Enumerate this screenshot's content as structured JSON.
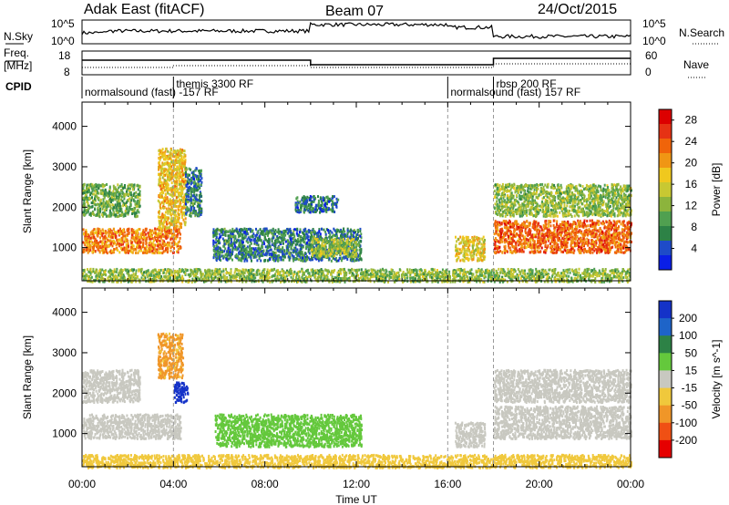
{
  "header": {
    "station": "Adak East (fitACF)",
    "beam": "Beam 07",
    "date": "24/Oct/2015"
  },
  "top_panels": {
    "nsky_label": "N.Sky",
    "nsearch_label": "N.Search",
    "nsky_ticks": [
      "10^5",
      "10^0"
    ],
    "nsearch_ticks": [
      "10^5",
      "10^0"
    ],
    "freq_label_1": "Freq.",
    "freq_label_2": "[MHz]",
    "freq_ticks": [
      "18",
      "8"
    ],
    "nave_label": "Nave",
    "nave_ticks": [
      "60",
      "0"
    ],
    "cpid_label": "CPID",
    "cpid_segments": [
      {
        "name": "normalsound (fast) -157 RF",
        "start": 0,
        "end": 4
      },
      {
        "name": "themis 3300 RF",
        "start": 4,
        "end": 16
      },
      {
        "name": "normalsound (fast) 157 RF",
        "start": 16,
        "end": 18
      },
      {
        "name": "rbsp 200 RF",
        "start": 18,
        "end": 24
      }
    ]
  },
  "chart_data": [
    {
      "type": "heatmap",
      "xlabel": "Time UT",
      "ylabel": "Slant Range [km]",
      "xlim": [
        0,
        24
      ],
      "ylim": [
        180,
        4600
      ],
      "x_ticks": [
        "00:00",
        "04:00",
        "08:00",
        "12:00",
        "16:00",
        "20:00",
        "00:00"
      ],
      "y_ticks": [
        1000,
        2000,
        3000,
        4000
      ],
      "colorbar": {
        "label": "Power [dB]",
        "ticks": [
          4,
          8,
          12,
          16,
          20,
          24,
          28
        ],
        "range": [
          0,
          30
        ],
        "colors": [
          "#0a1ee6",
          "#1e4bc8",
          "#2d8246",
          "#50a050",
          "#8cb43c",
          "#c8c832",
          "#f0c81e",
          "#f09614",
          "#f0640a",
          "#e63214",
          "#dc0000"
        ]
      },
      "regions": [
        {
          "t0": 0.0,
          "t1": 4.3,
          "r0": 900,
          "r1": 1500,
          "level": 22
        },
        {
          "t0": 0.0,
          "t1": 2.5,
          "r0": 1800,
          "r1": 2600,
          "level": 10
        },
        {
          "t0": 3.3,
          "t1": 4.5,
          "r0": 1500,
          "r1": 3500,
          "level": 18
        },
        {
          "t0": 4.5,
          "t1": 5.2,
          "r0": 1800,
          "r1": 3000,
          "level": 6
        },
        {
          "t0": 5.7,
          "t1": 12.2,
          "r0": 700,
          "r1": 1500,
          "level": 6
        },
        {
          "t0": 10.0,
          "t1": 12.0,
          "r0": 800,
          "r1": 1250,
          "level": 13
        },
        {
          "t0": 9.3,
          "t1": 11.2,
          "r0": 1900,
          "r1": 2300,
          "level": 5
        },
        {
          "t0": 16.3,
          "t1": 17.6,
          "r0": 700,
          "r1": 1300,
          "level": 17
        },
        {
          "t0": 18.0,
          "t1": 24.0,
          "r0": 900,
          "r1": 1700,
          "level": 24
        },
        {
          "t0": 18.0,
          "t1": 24.0,
          "r0": 1800,
          "r1": 2600,
          "level": 12
        },
        {
          "t0": 0.0,
          "t1": 24.0,
          "r0": 180,
          "r1": 500,
          "level": 12
        }
      ]
    },
    {
      "type": "heatmap",
      "xlabel": "Time UT",
      "ylabel": "Slant Range [km]",
      "xlim": [
        0,
        24
      ],
      "ylim": [
        180,
        4600
      ],
      "x_ticks": [
        "00:00",
        "04:00",
        "08:00",
        "12:00",
        "16:00",
        "20:00",
        "00:00"
      ],
      "y_ticks": [
        1000,
        2000,
        3000,
        4000
      ],
      "colorbar": {
        "label": "Velocity [m s^-1]",
        "ticks": [
          200,
          100,
          50,
          15,
          -15,
          -50,
          -100,
          -200
        ],
        "colors": [
          "#1432c8",
          "#1e64c8",
          "#2d8246",
          "#64c83c",
          "#c8c8c0",
          "#f0c83c",
          "#f09628",
          "#f05014",
          "#e60000"
        ]
      },
      "regions": [
        {
          "t0": 0.0,
          "t1": 4.3,
          "r0": 900,
          "r1": 1500,
          "value": 0
        },
        {
          "t0": 0.0,
          "t1": 2.5,
          "r0": 1800,
          "r1": 2600,
          "value": 0
        },
        {
          "t0": 3.3,
          "t1": 4.4,
          "r0": 2400,
          "r1": 3500,
          "value": -60
        },
        {
          "t0": 4.0,
          "t1": 4.6,
          "r0": 1800,
          "r1": 2300,
          "value": 220
        },
        {
          "t0": 5.8,
          "t1": 12.2,
          "r0": 700,
          "r1": 1500,
          "value": 30
        },
        {
          "t0": 16.3,
          "t1": 17.6,
          "r0": 700,
          "r1": 1300,
          "value": 0
        },
        {
          "t0": 18.0,
          "t1": 24.0,
          "r0": 900,
          "r1": 1700,
          "value": 0
        },
        {
          "t0": 18.0,
          "t1": 24.0,
          "r0": 1800,
          "r1": 2600,
          "value": 0
        },
        {
          "t0": 0.0,
          "t1": 24.0,
          "r0": 180,
          "r1": 500,
          "value": -30
        }
      ]
    }
  ]
}
